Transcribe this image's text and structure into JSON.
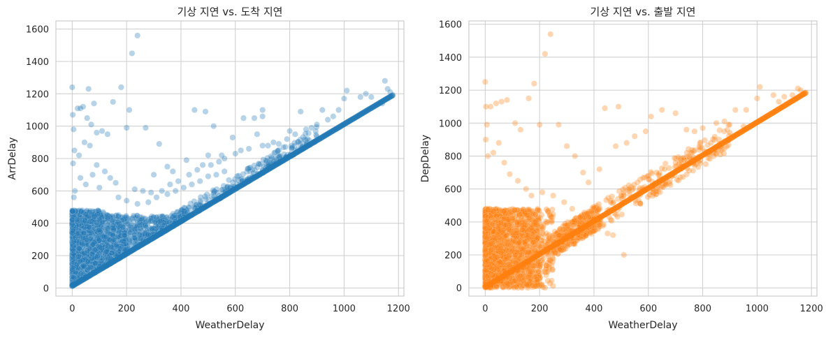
{
  "chart_data": [
    {
      "type": "scatter",
      "title": "기상 지연 vs. 도착 지연",
      "xlabel": "WeatherDelay",
      "ylabel": "ArrDelay",
      "xlim": [
        -60,
        1220
      ],
      "ylim": [
        -50,
        1650
      ],
      "xticks": [
        0,
        200,
        400,
        600,
        800,
        1000,
        1200
      ],
      "yticks": [
        0,
        200,
        400,
        600,
        800,
        1000,
        1200,
        1400,
        1600
      ],
      "grid": true,
      "color": "#1f77b4",
      "alpha": 0.32,
      "series": [
        {
          "points": [
            [
              0,
              1240
            ],
            [
              2,
              1070
            ],
            [
              5,
              980
            ],
            [
              8,
              850
            ],
            [
              3,
              770
            ],
            [
              10,
              600
            ],
            [
              6,
              560
            ],
            [
              20,
              1110
            ],
            [
              30,
              1110
            ],
            [
              40,
              1120
            ],
            [
              60,
              1230
            ],
            [
              55,
              1050
            ],
            [
              70,
              1010
            ],
            [
              80,
              1140
            ],
            [
              90,
              960
            ],
            [
              110,
              970
            ],
            [
              130,
              950
            ],
            [
              150,
              1150
            ],
            [
              180,
              1240
            ],
            [
              200,
              990
            ],
            [
              210,
              1100
            ],
            [
              220,
              1450
            ],
            [
              240,
              1560
            ],
            [
              270,
              990
            ],
            [
              300,
              700
            ],
            [
              320,
              890
            ],
            [
              350,
              750
            ],
            [
              370,
              720
            ],
            [
              420,
              790
            ],
            [
              450,
              1100
            ],
            [
              490,
              1090
            ],
            [
              500,
              820
            ],
            [
              520,
              1000
            ],
            [
              550,
              820
            ],
            [
              590,
              930
            ],
            [
              630,
              1050
            ],
            [
              670,
              1050
            ],
            [
              700,
              1060
            ],
            [
              700,
              1100
            ],
            [
              680,
              950
            ],
            [
              740,
              900
            ],
            [
              800,
              970
            ],
            [
              840,
              1090
            ],
            [
              880,
              990
            ],
            [
              920,
              1100
            ],
            [
              980,
              1100
            ],
            [
              1000,
              1170
            ],
            [
              1010,
              1220
            ],
            [
              1060,
              1180
            ],
            [
              1080,
              1200
            ],
            [
              1100,
              1180
            ],
            [
              1140,
              1140
            ],
            [
              1150,
              1280
            ],
            [
              1160,
              1230
            ],
            [
              1170,
              1210
            ],
            [
              25,
              820
            ],
            [
              45,
              900
            ],
            [
              65,
              880
            ],
            [
              90,
              760
            ],
            [
              120,
              720
            ],
            [
              160,
              650
            ],
            [
              230,
              610
            ],
            [
              260,
              600
            ],
            [
              290,
              590
            ],
            [
              330,
              600
            ],
            [
              360,
              640
            ],
            [
              390,
              660
            ],
            [
              430,
              700
            ],
            [
              460,
              730
            ],
            [
              480,
              760
            ],
            [
              510,
              760
            ],
            [
              540,
              780
            ],
            [
              560,
              800
            ],
            [
              600,
              830
            ],
            [
              620,
              850
            ],
            [
              650,
              860
            ],
            [
              700,
              880
            ],
            [
              720,
              880
            ],
            [
              760,
              890
            ],
            [
              790,
              920
            ],
            [
              820,
              950
            ],
            [
              860,
              980
            ],
            [
              900,
              1010
            ],
            [
              940,
              1040
            ],
            [
              960,
              1060
            ],
            [
              30,
              680
            ],
            [
              50,
              640
            ],
            [
              75,
              700
            ],
            [
              100,
              620
            ],
            [
              140,
              680
            ],
            [
              170,
              560
            ],
            [
              200,
              540
            ],
            [
              240,
              520
            ],
            [
              280,
              530
            ],
            [
              310,
              560
            ],
            [
              350,
              580
            ],
            [
              380,
              600
            ],
            [
              410,
              620
            ],
            [
              440,
              640
            ],
            [
              470,
              660
            ],
            [
              500,
              690
            ],
            [
              530,
              700
            ],
            [
              560,
              720
            ]
          ]
        }
      ]
    },
    {
      "type": "scatter",
      "title": "기상 지연 vs. 출발 지연",
      "xlabel": "WeatherDelay",
      "ylabel": "DepDelay",
      "xlim": [
        -60,
        1220
      ],
      "ylim": [
        -50,
        1620
      ],
      "xticks": [
        0,
        200,
        400,
        600,
        800,
        1000,
        1200
      ],
      "yticks": [
        0,
        200,
        400,
        600,
        800,
        1000,
        1200,
        1400,
        1600
      ],
      "grid": true,
      "color": "#ff7f0e",
      "alpha": 0.32,
      "series": [
        {
          "points": [
            [
              0,
              1250
            ],
            [
              3,
              1100
            ],
            [
              6,
              990
            ],
            [
              2,
              900
            ],
            [
              10,
              800
            ],
            [
              20,
              1100
            ],
            [
              40,
              1120
            ],
            [
              60,
              1130
            ],
            [
              80,
              1140
            ],
            [
              110,
              1000
            ],
            [
              130,
              960
            ],
            [
              160,
              1150
            ],
            [
              180,
              1240
            ],
            [
              200,
              990
            ],
            [
              220,
              1420
            ],
            [
              240,
              1540
            ],
            [
              270,
              990
            ],
            [
              300,
              860
            ],
            [
              330,
              800
            ],
            [
              360,
              700
            ],
            [
              380,
              640
            ],
            [
              420,
              720
            ],
            [
              440,
              1090
            ],
            [
              490,
              1100
            ],
            [
              510,
              200
            ],
            [
              480,
              860
            ],
            [
              520,
              880
            ],
            [
              550,
              920
            ],
            [
              590,
              950
            ],
            [
              610,
              1040
            ],
            [
              650,
              1080
            ],
            [
              700,
              1060
            ],
            [
              740,
              960
            ],
            [
              770,
              950
            ],
            [
              800,
              970
            ],
            [
              850,
              1000
            ],
            [
              880,
              1010
            ],
            [
              920,
              1080
            ],
            [
              960,
              1080
            ],
            [
              1000,
              1150
            ],
            [
              1010,
              1220
            ],
            [
              1060,
              1170
            ],
            [
              1080,
              1130
            ],
            [
              1100,
              1160
            ],
            [
              1130,
              1170
            ],
            [
              1150,
              1210
            ],
            [
              1160,
              1200
            ],
            [
              1170,
              1180
            ],
            [
              30,
              820
            ],
            [
              50,
              880
            ],
            [
              70,
              760
            ],
            [
              90,
              690
            ],
            [
              120,
              650
            ],
            [
              150,
              600
            ],
            [
              170,
              560
            ],
            [
              210,
              580
            ],
            [
              250,
              560
            ],
            [
              290,
              520
            ],
            [
              320,
              480
            ],
            [
              350,
              430
            ],
            [
              380,
              430
            ],
            [
              400,
              420
            ],
            [
              420,
              380
            ],
            [
              450,
              330
            ],
            [
              470,
              320
            ],
            [
              500,
              560
            ],
            [
              530,
              600
            ],
            [
              560,
              640
            ],
            [
              600,
              680
            ],
            [
              630,
              700
            ],
            [
              660,
              720
            ],
            [
              700,
              760
            ],
            [
              730,
              790
            ],
            [
              760,
              820
            ],
            [
              790,
              850
            ],
            [
              830,
              880
            ],
            [
              860,
              900
            ],
            [
              900,
              940
            ],
            [
              950,
              980
            ]
          ]
        }
      ]
    }
  ]
}
